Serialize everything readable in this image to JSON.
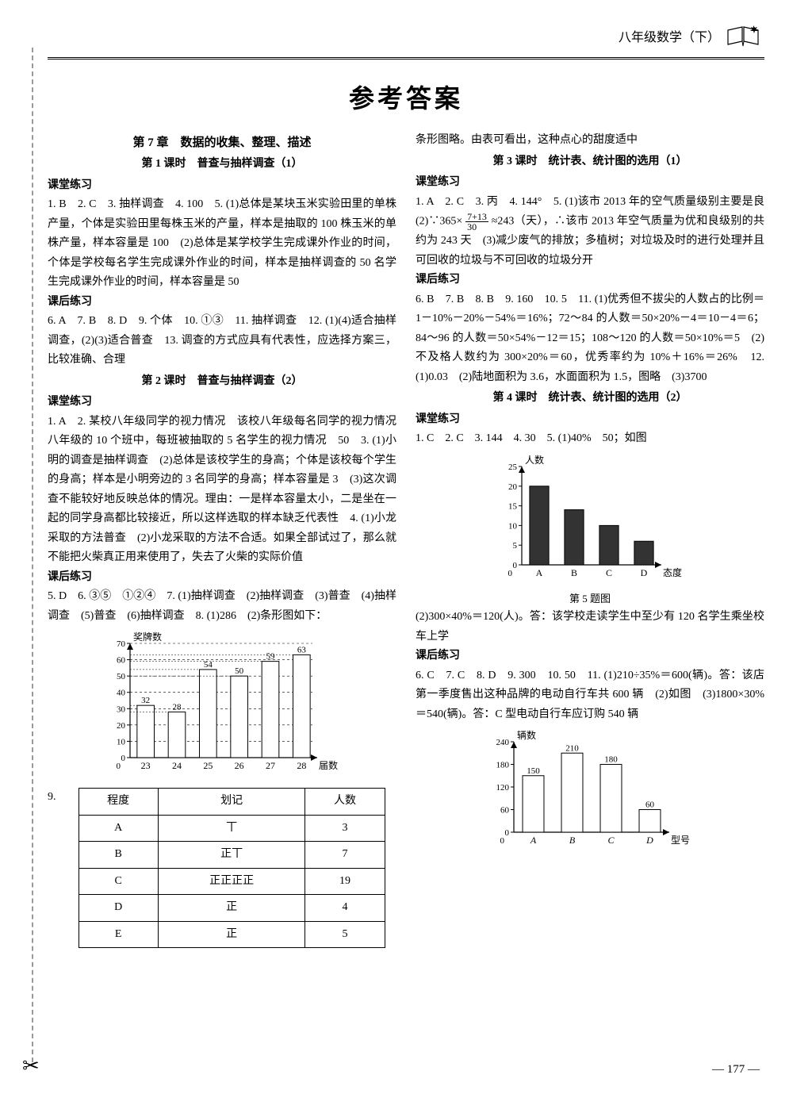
{
  "header": {
    "subject": "八年级数学（下）"
  },
  "title": "参考答案",
  "left": {
    "chapter": "第 7 章　数据的收集、整理、描述",
    "lesson1": "第 1 课时　普查与抽样调查（1）",
    "ktlx": "课堂练习",
    "khlx": "课后练习",
    "p1": "1. B　2. C　3. 抽样调查　4. 100　5. (1)总体是某块玉米实验田里的单株产量，个体是实验田里每株玉米的产量，样本是抽取的 100 株玉米的单株产量，样本容量是 100　(2)总体是某学校学生完成课外作业的时间，个体是学校每名学生完成课外作业的时间，样本是抽样调查的 50 名学生完成课外作业的时间，样本容量是 50",
    "p2": "6. A　7. B　8. D　9. 个体　10. ①③　11. 抽样调查　12. (1)(4)适合抽样调查，(2)(3)适合普查　13. 调查的方式应具有代表性，应选择方案三，比较准确、合理",
    "lesson2": "第 2 课时　普查与抽样调查（2）",
    "p3": "1. A　2. 某校八年级同学的视力情况　该校八年级每名同学的视力情况　八年级的 10 个班中，每班被抽取的 5 名学生的视力情况　50　3. (1)小明的调查是抽样调查　(2)总体是该校学生的身高；个体是该校每个学生的身高；样本是小明旁边的 3 名同学的身高；样本容量是 3　(3)这次调查不能较好地反映总体的情况。理由：一是样本容量太小，二是坐在一起的同学身高都比较接近，所以这样选取的样本缺乏代表性　4. (1)小龙采取的方法普查　(2)小龙采取的方法不合适。如果全部试过了，那么就不能把火柴真正用来使用了，失去了火柴的实际价值",
    "p4": "5. D　6. ③⑤　①②④　7. (1)抽样调查　(2)抽样调查　(3)普查　(4)抽样调查　(5)普查　(6)抽样调查　8. (1)286　(2)条形图如下：",
    "table9_label": "9.",
    "table9": {
      "headers": [
        "程度",
        "划记",
        "人数"
      ],
      "rows": [
        [
          "A",
          "丅",
          "3"
        ],
        [
          "B",
          "正丅",
          "7"
        ],
        [
          "C",
          "正正正正",
          "19"
        ],
        [
          "D",
          "正",
          "4"
        ],
        [
          "E",
          "正",
          "5"
        ]
      ]
    },
    "bar_chart1": {
      "ylabel": "奖牌数",
      "xlabel": "届数",
      "categories": [
        "23",
        "24",
        "25",
        "26",
        "27",
        "28"
      ],
      "values": [
        32,
        28,
        54,
        50,
        59,
        63
      ],
      "ymax": 70,
      "ystep": 10,
      "bar_color": "#ffffff",
      "border_color": "#000000",
      "grid_color": "#000000",
      "bg": "#ffffff"
    }
  },
  "right": {
    "p_top": "条形图略。由表可看出，这种点心的甜度适中",
    "lesson3": "第 3 课时　统计表、统计图的选用（1）",
    "ktlx": "课堂练习",
    "khlx": "课后练习",
    "p1": "1. A　2. C　3. 丙　4. 144°　5. (1)该市 2013 年的空气质量级别主要是良　(2)∵365×",
    "frac_n": "7+13",
    "frac_d": "30",
    "p1b": "≈243（天），∴该市 2013 年空气质量为优和良级别的共约为 243 天　(3)减少废气的排放；多植树；对垃圾及时的进行处理并且可回收的垃圾与不可回收的垃圾分开",
    "p2": "6. B　7. B　8. B　9. 160　10. 5　11. (1)优秀但不拔尖的人数占的比例＝1－10%－20%－54%＝16%；72～84 的人数＝50×20%－4＝10－4＝6；84～96 的人数＝50×54%－12＝15；108～120 的人数＝50×10%＝5　(2)不及格人数约为 300×20%＝60，优秀率约为 10%＋16%＝26%　12. (1)0.03　(2)陆地面积为 3.6，水面面积为 1.5，图略　(3)3700",
    "lesson4": "第 4 课时　统计表、统计图的选用（2）",
    "p3": "1. C　2. C　3. 144　4. 30　5. (1)40%　50；如图",
    "chart2_caption": "第 5 题图",
    "p4": "(2)300×40%＝120(人)。答：该学校走读学生中至少有 120 名学生乘坐校车上学",
    "p5": "6. C　7. C　8. D　9. 300　10. 50　11. (1)210÷35%＝600(辆)。答：该店第一季度售出这种品牌的电动自行车共 600 辆　(2)如图　(3)1800×30%＝540(辆)。答：C 型电动自行车应订购 540 辆",
    "bar_chart2": {
      "ylabel": "人数",
      "xlabel": "态度",
      "categories": [
        "A",
        "B",
        "C",
        "D"
      ],
      "values": [
        20,
        14,
        10,
        6
      ],
      "ymax": 25,
      "ystep": 5,
      "bar_color": "#333333",
      "border_color": "#000000"
    },
    "bar_chart3": {
      "ylabel": "辆数",
      "xlabel": "型号",
      "categories": [
        "A",
        "B",
        "C",
        "D"
      ],
      "values": [
        150,
        210,
        180,
        60
      ],
      "ymax": 240,
      "ystep": 60,
      "bar_color": "#ffffff",
      "border_color": "#000000"
    }
  },
  "footer": "— 177 —"
}
